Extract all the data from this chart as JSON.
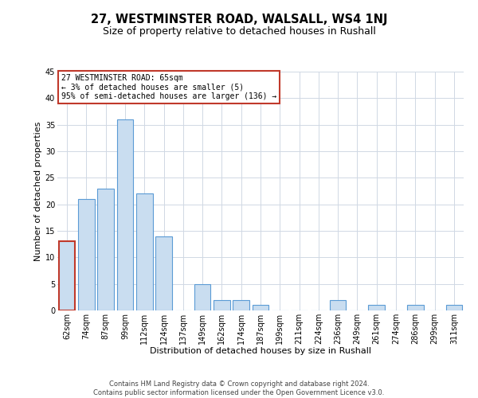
{
  "title": "27, WESTMINSTER ROAD, WALSALL, WS4 1NJ",
  "subtitle": "Size of property relative to detached houses in Rushall",
  "xlabel": "Distribution of detached houses by size in Rushall",
  "ylabel": "Number of detached properties",
  "bar_labels": [
    "62sqm",
    "74sqm",
    "87sqm",
    "99sqm",
    "112sqm",
    "124sqm",
    "137sqm",
    "149sqm",
    "162sqm",
    "174sqm",
    "187sqm",
    "199sqm",
    "211sqm",
    "224sqm",
    "236sqm",
    "249sqm",
    "261sqm",
    "274sqm",
    "286sqm",
    "299sqm",
    "311sqm"
  ],
  "bar_values": [
    13,
    21,
    23,
    36,
    22,
    14,
    0,
    5,
    2,
    2,
    1,
    0,
    0,
    0,
    2,
    0,
    1,
    0,
    1,
    0,
    1
  ],
  "bar_color": "#c9ddf0",
  "bar_edge_color": "#5b9bd5",
  "highlight_bar_index": 0,
  "highlight_bar_edge_color": "#c0392b",
  "annotation_title": "27 WESTMINSTER ROAD: 65sqm",
  "annotation_line2": "← 3% of detached houses are smaller (5)",
  "annotation_line3": "95% of semi-detached houses are larger (136) →",
  "annotation_box_color": "#ffffff",
  "annotation_box_edge_color": "#c0392b",
  "ylim": [
    0,
    45
  ],
  "yticks": [
    0,
    5,
    10,
    15,
    20,
    25,
    30,
    35,
    40,
    45
  ],
  "footnote1": "Contains HM Land Registry data © Crown copyright and database right 2024.",
  "footnote2": "Contains public sector information licensed under the Open Government Licence v3.0.",
  "background_color": "#ffffff",
  "grid_color": "#d0d8e4",
  "title_fontsize": 10.5,
  "subtitle_fontsize": 9,
  "axis_label_fontsize": 8,
  "tick_fontsize": 7,
  "annotation_fontsize": 7,
  "footnote_fontsize": 6
}
